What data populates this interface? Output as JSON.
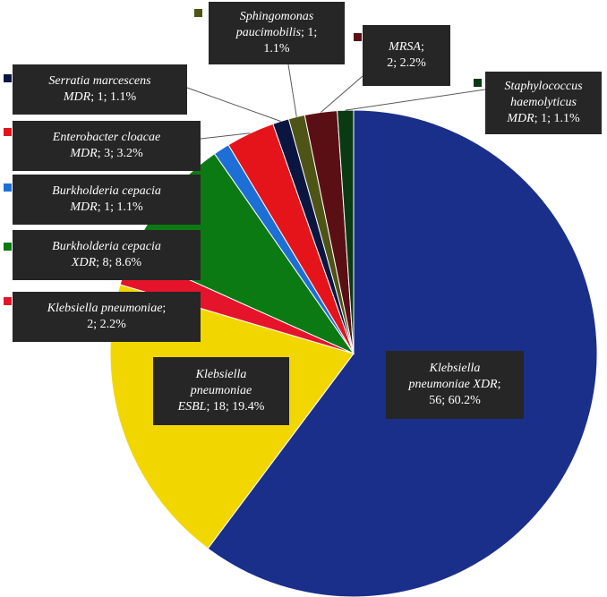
{
  "chart_data": {
    "type": "pie",
    "slices": [
      {
        "name": "Klebsiella pneumoniae XDR",
        "value": 56,
        "percent": "60.2%",
        "color": "#1a2f8a",
        "lines": [
          [
            "Klebsiella",
            ""
          ],
          [
            "pneumoniae XDR",
            ";"
          ],
          [
            "",
            "56; 60.2%"
          ]
        ]
      },
      {
        "name": "Klebsiella pneumoniae ESBL",
        "value": 18,
        "percent": "19.4%",
        "color": "#f2d600",
        "lines": [
          [
            "Klebsiella",
            ""
          ],
          [
            "pneumoniae",
            ""
          ],
          [
            "ESBL",
            "; 18; 19.4%"
          ]
        ]
      },
      {
        "name": "Klebsiella pneumoniae",
        "value": 2,
        "percent": "2.2%",
        "color": "#e5142b",
        "lines": [
          [
            "Klebsiella pneumoniae",
            ";"
          ],
          [
            "",
            "2; 2.2%"
          ]
        ]
      },
      {
        "name": "Burkholderia cepacia XDR",
        "value": 8,
        "percent": "8.6%",
        "color": "#0c7a12",
        "lines": [
          [
            "Burkholderia cepacia",
            ""
          ],
          [
            "XDR",
            "; 8; 8.6%"
          ]
        ]
      },
      {
        "name": "Burkholderia cepacia MDR",
        "value": 1,
        "percent": "1.1%",
        "color": "#1d6fd6",
        "lines": [
          [
            "Burkholderia cepacia",
            ""
          ],
          [
            "MDR",
            "; 1; 1.1%"
          ]
        ]
      },
      {
        "name": "Enterobacter cloacae MDR",
        "value": 3,
        "percent": "3.2%",
        "color": "#e5141b",
        "lines": [
          [
            "Enterobacter cloacae",
            ""
          ],
          [
            "MDR",
            "; 3; 3.2%"
          ]
        ]
      },
      {
        "name": "Serratia marcescens MDR",
        "value": 1,
        "percent": "1.1%",
        "color": "#0b1640",
        "lines": [
          [
            "Serratia marcescens",
            ""
          ],
          [
            "MDR",
            "; 1; 1.1%"
          ]
        ]
      },
      {
        "name": "Sphingomonas paucimobilis",
        "value": 1,
        "percent": "1.1%",
        "color": "#4d5416",
        "lines": [
          [
            "Sphingomonas",
            ""
          ],
          [
            "paucimobilis",
            "; 1;"
          ],
          [
            "",
            "1.1%"
          ]
        ]
      },
      {
        "name": "MRSA",
        "value": 2,
        "percent": "2.2%",
        "color": "#5a0f14",
        "lines": [
          [
            "MRSA",
            ";"
          ],
          [
            "",
            "2; 2.2%"
          ]
        ]
      },
      {
        "name": "Staphylococcus haemolyticus MDR",
        "value": 1,
        "percent": "1.1%",
        "color": "#0a3a14",
        "lines": [
          [
            "Staphylococcus",
            ""
          ],
          [
            "haemolyticus",
            ""
          ],
          [
            "MDR",
            "; 1; 1.1%"
          ]
        ]
      }
    ]
  }
}
